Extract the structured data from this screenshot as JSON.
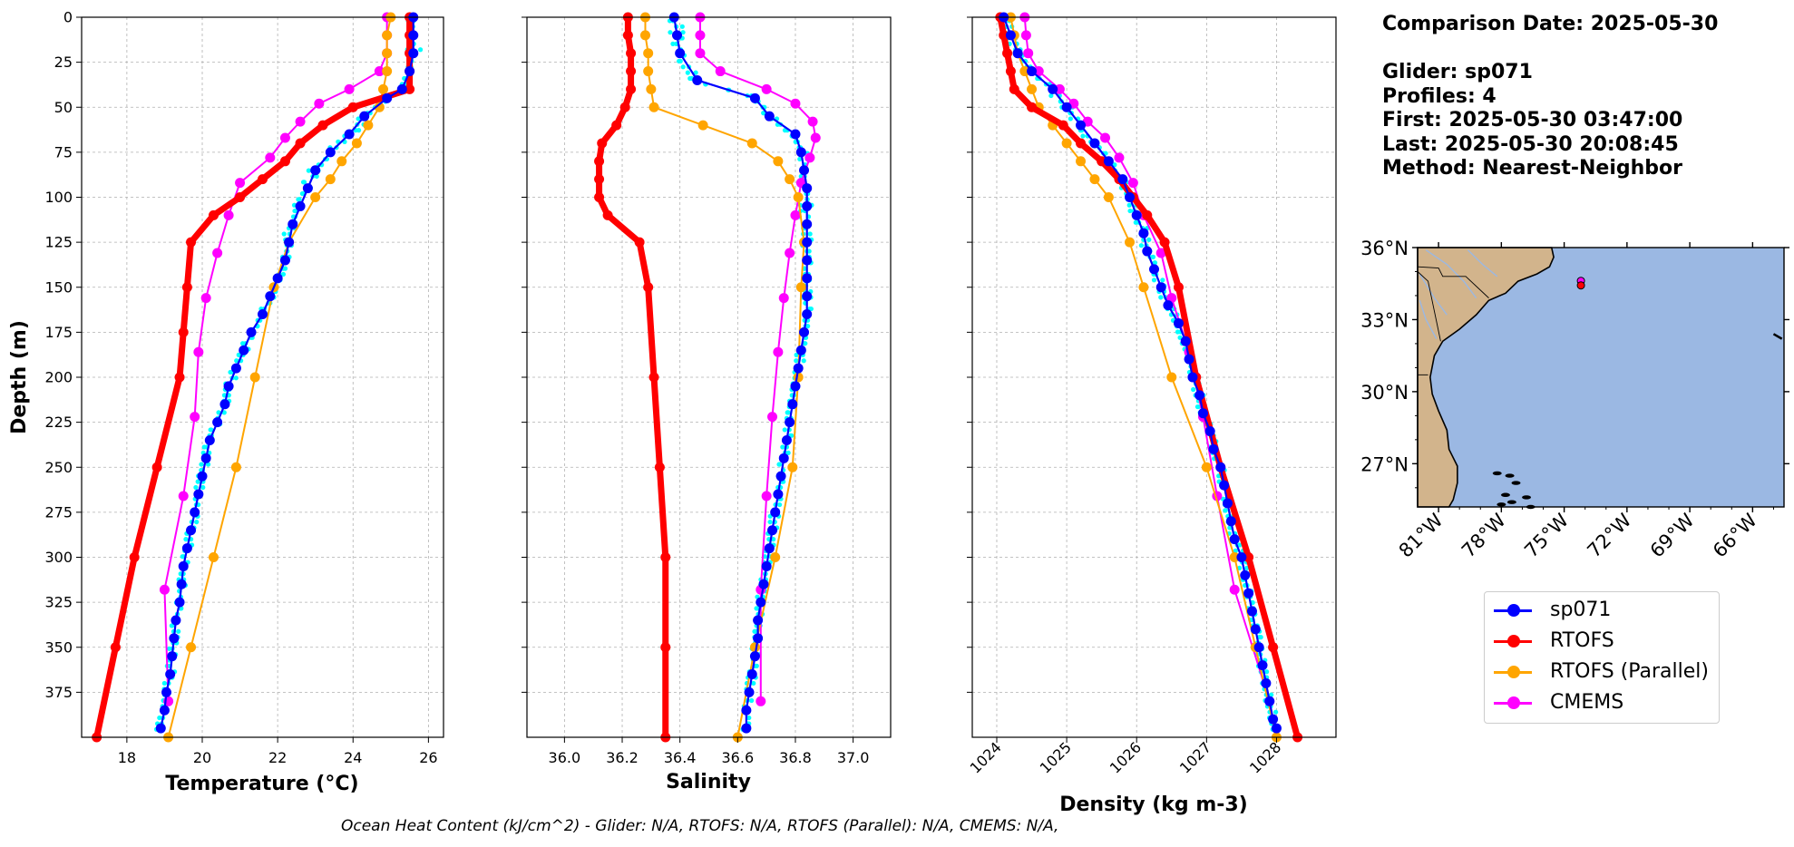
{
  "chart_data": [
    {
      "type": "line",
      "panel": "temperature",
      "xlabel": "Temperature (°C)",
      "ylabel": "Depth (m)",
      "xlim": [
        16.8,
        26.4
      ],
      "ylim": [
        400,
        0
      ],
      "xticks": [
        "18",
        "20",
        "22",
        "24",
        "26"
      ],
      "yticks": [
        "0",
        "25",
        "50",
        "75",
        "100",
        "125",
        "150",
        "175",
        "200",
        "225",
        "250",
        "275",
        "300",
        "325",
        "350",
        "375"
      ],
      "grid": true,
      "series": [
        {
          "name": "sp071",
          "color": "#0000ff",
          "depth": [
            0,
            10,
            20,
            30,
            40,
            45,
            55,
            65,
            75,
            85,
            95,
            105,
            115,
            125,
            135,
            145,
            155,
            165,
            175,
            185,
            195,
            205,
            215,
            225,
            235,
            245,
            255,
            265,
            275,
            285,
            295,
            305,
            315,
            325,
            335,
            345,
            355,
            365,
            375,
            385,
            395
          ],
          "values": [
            25.6,
            25.6,
            25.6,
            25.5,
            25.3,
            24.9,
            24.3,
            23.9,
            23.4,
            23.0,
            22.8,
            22.6,
            22.4,
            22.3,
            22.2,
            22.0,
            21.8,
            21.6,
            21.3,
            21.1,
            20.9,
            20.7,
            20.6,
            20.4,
            20.2,
            20.1,
            20.0,
            19.9,
            19.8,
            19.7,
            19.6,
            19.5,
            19.45,
            19.4,
            19.3,
            19.25,
            19.2,
            19.15,
            19.05,
            19.0,
            18.9
          ]
        },
        {
          "name": "RTOFS",
          "color": "#ff0000",
          "depth": [
            0,
            10,
            20,
            30,
            40,
            50,
            60,
            70,
            80,
            90,
            100,
            110,
            125,
            150,
            175,
            200,
            250,
            300,
            350,
            400
          ],
          "values": [
            25.5,
            25.5,
            25.5,
            25.5,
            25.5,
            24.0,
            23.2,
            22.6,
            22.2,
            21.6,
            21.0,
            20.3,
            19.7,
            19.6,
            19.5,
            19.4,
            18.8,
            18.2,
            17.7,
            17.2
          ]
        },
        {
          "name": "RTOFS (Parallel)",
          "color": "#ffa500",
          "depth": [
            0,
            10,
            20,
            30,
            40,
            50,
            60,
            70,
            80,
            90,
            100,
            125,
            150,
            200,
            250,
            300,
            350,
            400
          ],
          "values": [
            25.0,
            24.9,
            24.9,
            24.9,
            24.8,
            24.7,
            24.4,
            24.1,
            23.7,
            23.4,
            23.0,
            22.3,
            21.9,
            21.4,
            20.9,
            20.3,
            19.7,
            19.1
          ]
        },
        {
          "name": "CMEMS",
          "color": "#ff00ff",
          "depth": [
            0,
            10,
            20,
            30,
            40,
            48,
            58,
            67,
            78,
            92,
            110,
            131,
            156,
            186,
            222,
            266,
            318,
            380
          ],
          "values": [
            24.9,
            24.9,
            24.9,
            24.7,
            23.9,
            23.1,
            22.6,
            22.2,
            21.8,
            21.0,
            20.7,
            20.4,
            20.1,
            19.9,
            19.8,
            19.5,
            19.0,
            19.1
          ]
        }
      ]
    },
    {
      "type": "line",
      "panel": "salinity",
      "xlabel": "Salinity",
      "xlim": [
        35.87,
        37.13
      ],
      "ylim": [
        400,
        0
      ],
      "xticks": [
        "36.0",
        "36.2",
        "36.4",
        "36.6",
        "36.8",
        "37.0"
      ],
      "grid": true,
      "series": [
        {
          "name": "sp071",
          "color": "#0000ff",
          "depth": [
            0,
            10,
            20,
            35,
            45,
            55,
            65,
            75,
            85,
            95,
            105,
            115,
            125,
            135,
            145,
            155,
            165,
            175,
            185,
            195,
            205,
            215,
            225,
            235,
            245,
            255,
            265,
            275,
            285,
            295,
            305,
            315,
            325,
            335,
            345,
            355,
            365,
            375,
            385,
            395
          ],
          "values": [
            36.38,
            36.39,
            36.4,
            36.46,
            36.66,
            36.71,
            36.8,
            36.82,
            36.83,
            36.84,
            36.84,
            36.84,
            36.84,
            36.84,
            36.84,
            36.84,
            36.84,
            36.83,
            36.82,
            36.81,
            36.8,
            36.79,
            36.78,
            36.77,
            36.76,
            36.75,
            36.74,
            36.73,
            36.72,
            36.71,
            36.7,
            36.69,
            36.68,
            36.67,
            36.67,
            36.66,
            36.65,
            36.64,
            36.63,
            36.63
          ]
        },
        {
          "name": "RTOFS",
          "color": "#ff0000",
          "depth": [
            0,
            10,
            20,
            30,
            40,
            50,
            60,
            70,
            80,
            90,
            100,
            110,
            125,
            150,
            200,
            250,
            300,
            350,
            400
          ],
          "values": [
            36.22,
            36.22,
            36.23,
            36.23,
            36.23,
            36.21,
            36.18,
            36.13,
            36.12,
            36.12,
            36.12,
            36.15,
            36.26,
            36.29,
            36.31,
            36.33,
            36.35,
            36.35,
            36.35
          ]
        },
        {
          "name": "RTOFS (Parallel)",
          "color": "#ffa500",
          "depth": [
            0,
            10,
            20,
            30,
            40,
            50,
            60,
            70,
            80,
            90,
            100,
            125,
            150,
            200,
            250,
            300,
            350,
            400
          ],
          "values": [
            36.28,
            36.28,
            36.29,
            36.29,
            36.3,
            36.31,
            36.48,
            36.65,
            36.74,
            36.78,
            36.81,
            36.83,
            36.82,
            36.81,
            36.79,
            36.73,
            36.66,
            36.6
          ]
        },
        {
          "name": "CMEMS",
          "color": "#ff00ff",
          "depth": [
            0,
            10,
            20,
            30,
            40,
            48,
            58,
            67,
            78,
            92,
            110,
            131,
            156,
            186,
            222,
            266,
            318,
            380
          ],
          "values": [
            36.47,
            36.47,
            36.47,
            36.54,
            36.7,
            36.8,
            36.86,
            36.87,
            36.85,
            36.82,
            36.8,
            36.78,
            36.76,
            36.74,
            36.72,
            36.7,
            36.68,
            36.68
          ]
        }
      ]
    },
    {
      "type": "line",
      "panel": "density",
      "xlabel": "Density (kg m-3)",
      "xlim": [
        1023.65,
        1028.85
      ],
      "ylim": [
        400,
        0
      ],
      "xticks": [
        "1024",
        "1025",
        "1026",
        "1027",
        "1028"
      ],
      "grid": true,
      "series": [
        {
          "name": "sp071",
          "color": "#0000ff",
          "depth": [
            0,
            10,
            20,
            30,
            40,
            50,
            60,
            70,
            80,
            90,
            100,
            110,
            120,
            130,
            140,
            150,
            160,
            170,
            180,
            190,
            200,
            210,
            220,
            230,
            240,
            250,
            260,
            270,
            280,
            290,
            300,
            310,
            320,
            330,
            340,
            350,
            360,
            370,
            380,
            390,
            395
          ],
          "values": [
            1024.1,
            1024.2,
            1024.3,
            1024.5,
            1024.8,
            1025.0,
            1025.2,
            1025.4,
            1025.6,
            1025.8,
            1025.9,
            1026.0,
            1026.1,
            1026.15,
            1026.25,
            1026.35,
            1026.45,
            1026.6,
            1026.7,
            1026.75,
            1026.8,
            1026.9,
            1026.95,
            1027.05,
            1027.1,
            1027.2,
            1027.25,
            1027.3,
            1027.35,
            1027.4,
            1027.5,
            1027.55,
            1027.6,
            1027.65,
            1027.7,
            1027.75,
            1027.8,
            1027.85,
            1027.9,
            1027.95,
            1028.0
          ]
        },
        {
          "name": "RTOFS",
          "color": "#ff0000",
          "depth": [
            0,
            10,
            20,
            30,
            40,
            50,
            60,
            70,
            80,
            90,
            100,
            110,
            125,
            150,
            200,
            250,
            300,
            350,
            400
          ],
          "values": [
            1024.05,
            1024.1,
            1024.15,
            1024.2,
            1024.25,
            1024.5,
            1024.95,
            1025.2,
            1025.5,
            1025.75,
            1025.95,
            1026.15,
            1026.4,
            1026.6,
            1026.85,
            1027.2,
            1027.6,
            1027.95,
            1028.3
          ]
        },
        {
          "name": "RTOFS (Parallel)",
          "color": "#ffa500",
          "depth": [
            0,
            10,
            20,
            30,
            40,
            50,
            60,
            70,
            80,
            90,
            100,
            125,
            150,
            200,
            250,
            300,
            350,
            400
          ],
          "values": [
            1024.2,
            1024.25,
            1024.3,
            1024.4,
            1024.5,
            1024.6,
            1024.8,
            1025.0,
            1025.2,
            1025.4,
            1025.6,
            1025.9,
            1026.1,
            1026.5,
            1027.0,
            1027.4,
            1027.7,
            1028.0
          ]
        },
        {
          "name": "CMEMS",
          "color": "#ff00ff",
          "depth": [
            0,
            10,
            20,
            30,
            40,
            48,
            58,
            67,
            78,
            92,
            110,
            131,
            156,
            186,
            222,
            266,
            318,
            380
          ],
          "values": [
            1024.4,
            1024.42,
            1024.45,
            1024.6,
            1024.9,
            1025.1,
            1025.3,
            1025.55,
            1025.75,
            1025.95,
            1026.1,
            1026.35,
            1026.5,
            1026.75,
            1026.95,
            1027.15,
            1027.4,
            1027.9
          ]
        }
      ]
    },
    {
      "type": "map",
      "panel": "location",
      "lon_range": [
        -82,
        -64.5
      ],
      "lat_range": [
        25.2,
        36
      ],
      "lon_ticks": [
        "81°W",
        "78°W",
        "75°W",
        "72°W",
        "69°W",
        "66°W"
      ],
      "lat_ticks": [
        "36°N",
        "33°N",
        "30°N",
        "27°N"
      ],
      "land_color": "#d2b48c",
      "ocean_color": "#9bb8e3",
      "glider_position": {
        "lon": -74.2,
        "lat": 34.5
      }
    }
  ],
  "info": {
    "comparison_date": "Comparison Date: 2025-05-30",
    "glider": "Glider: sp071",
    "profiles": "Profiles: 4",
    "first": "First: 2025-05-30 03:47:00",
    "last": "Last: 2025-05-30 20:08:45",
    "method": "Method: Nearest-Neighbor"
  },
  "legend": [
    {
      "label": "sp071",
      "color": "#0000ff"
    },
    {
      "label": "RTOFS",
      "color": "#ff0000"
    },
    {
      "label": "RTOFS (Parallel)",
      "color": "#ffa500"
    },
    {
      "label": "CMEMS",
      "color": "#ff00ff"
    }
  ],
  "footer": "Ocean Heat Content (kJ/cm^2) - Glider: N/A,  RTOFS: N/A,  RTOFS (Parallel): N/A,  CMEMS: N/A,",
  "glider_obs_color": "#00ffff"
}
